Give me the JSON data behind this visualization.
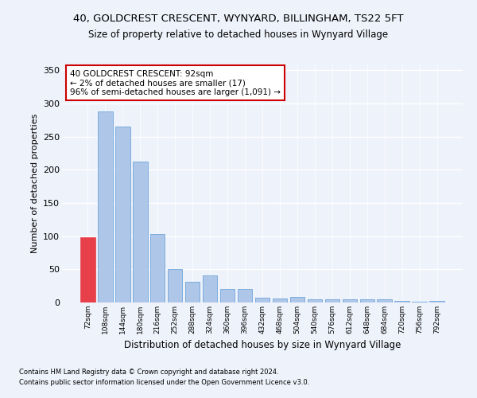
{
  "title1": "40, GOLDCREST CRESCENT, WYNYARD, BILLINGHAM, TS22 5FT",
  "title2": "Size of property relative to detached houses in Wynyard Village",
  "xlabel": "Distribution of detached houses by size in Wynyard Village",
  "ylabel": "Number of detached properties",
  "footnote1": "Contains HM Land Registry data © Crown copyright and database right 2024.",
  "footnote2": "Contains public sector information licensed under the Open Government Licence v3.0.",
  "annotation_line1": "40 GOLDCREST CRESCENT: 92sqm",
  "annotation_line2": "← 2% of detached houses are smaller (17)",
  "annotation_line3": "96% of semi-detached houses are larger (1,091) →",
  "categories": [
    "72sqm",
    "108sqm",
    "144sqm",
    "180sqm",
    "216sqm",
    "252sqm",
    "288sqm",
    "324sqm",
    "360sqm",
    "396sqm",
    "432sqm",
    "468sqm",
    "504sqm",
    "540sqm",
    "576sqm",
    "612sqm",
    "648sqm",
    "684sqm",
    "720sqm",
    "756sqm",
    "792sqm"
  ],
  "values": [
    98,
    288,
    265,
    212,
    103,
    51,
    31,
    41,
    20,
    20,
    7,
    6,
    9,
    5,
    5,
    5,
    5,
    5,
    2,
    1,
    3
  ],
  "bar_color": "#aec6e8",
  "bar_edge_color": "#5b9bd5",
  "highlight_bar_index": 0,
  "highlight_color": "#e8404a",
  "background_color": "#eef2fb",
  "grid_color": "#ffffff",
  "annotation_box_color": "#ffffff",
  "annotation_box_edge": "#cc0000",
  "ylim": [
    0,
    360
  ],
  "yticks": [
    0,
    50,
    100,
    150,
    200,
    250,
    300,
    350
  ]
}
